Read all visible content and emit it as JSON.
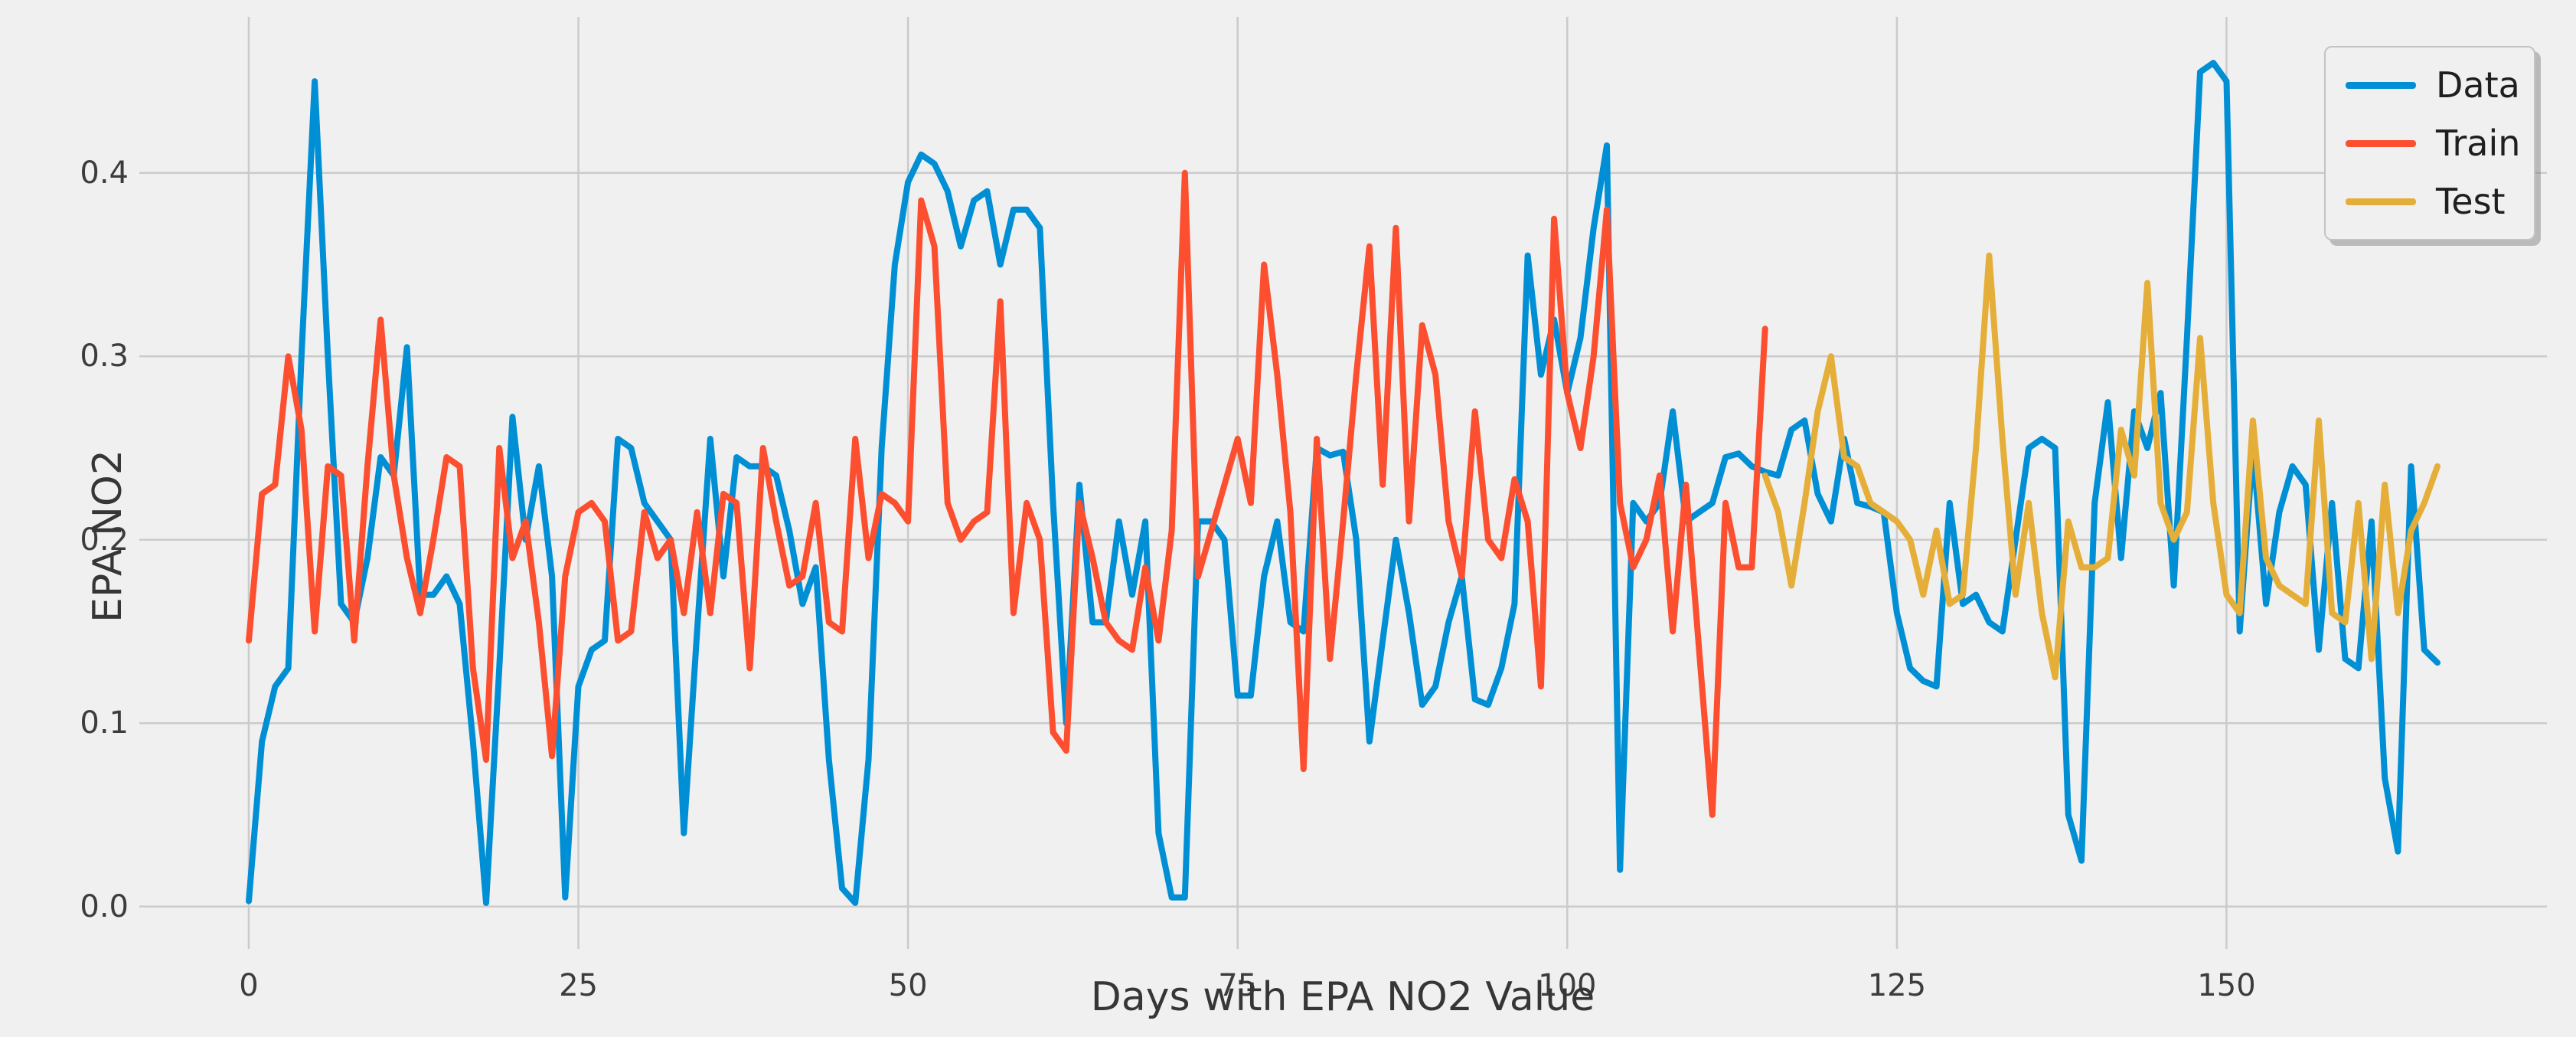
{
  "chart_data": {
    "type": "line",
    "title": "",
    "xlabel": "Days with EPA NO2 Value",
    "ylabel": "EPA NO2",
    "x_ticks": [
      0,
      25,
      50,
      75,
      100,
      125,
      150
    ],
    "y_ticks": [
      0.0,
      0.1,
      0.2,
      0.3,
      0.4
    ],
    "y_tick_labels": [
      "0.0",
      "0.1",
      "0.2",
      "0.3",
      "0.4"
    ],
    "xlim": [
      -8.3,
      174.3
    ],
    "ylim": [
      -0.0231,
      0.4851
    ],
    "grid": true,
    "legend_position": "upper right",
    "background_color": "#f0f0f0",
    "grid_color": "#cbcbcb",
    "series": [
      {
        "name": "Data",
        "color": "#008fd5",
        "x_start": 0,
        "x_step": 1,
        "values": [
          0.003,
          0.09,
          0.12,
          0.13,
          0.3,
          0.45,
          0.3,
          0.165,
          0.155,
          0.19,
          0.245,
          0.235,
          0.305,
          0.17,
          0.17,
          0.18,
          0.165,
          0.09,
          0.002,
          0.13,
          0.267,
          0.2,
          0.24,
          0.18,
          0.005,
          0.12,
          0.14,
          0.145,
          0.255,
          0.25,
          0.22,
          0.21,
          0.2,
          0.04,
          0.15,
          0.255,
          0.18,
          0.245,
          0.24,
          0.24,
          0.235,
          0.205,
          0.165,
          0.185,
          0.08,
          0.01,
          0.002,
          0.08,
          0.25,
          0.35,
          0.395,
          0.41,
          0.405,
          0.39,
          0.36,
          0.385,
          0.39,
          0.35,
          0.38,
          0.38,
          0.37,
          0.22,
          0.1,
          0.23,
          0.155,
          0.155,
          0.21,
          0.17,
          0.21,
          0.04,
          0.005,
          0.005,
          0.21,
          0.21,
          0.2,
          0.115,
          0.115,
          0.18,
          0.21,
          0.155,
          0.15,
          0.25,
          0.246,
          0.248,
          0.2,
          0.09,
          0.145,
          0.2,
          0.16,
          0.11,
          0.12,
          0.155,
          0.18,
          0.113,
          0.11,
          0.13,
          0.165,
          0.355,
          0.29,
          0.32,
          0.28,
          0.31,
          0.37,
          0.415,
          0.02,
          0.22,
          0.21,
          0.22,
          0.27,
          0.21,
          0.215,
          0.22,
          0.245,
          0.247,
          0.24,
          0.237,
          0.235,
          0.26,
          0.265,
          0.225,
          0.21,
          0.255,
          0.22,
          0.218,
          0.215,
          0.16,
          0.13,
          0.123,
          0.12,
          0.22,
          0.165,
          0.17,
          0.155,
          0.15,
          0.2,
          0.25,
          0.255,
          0.25,
          0.05,
          0.025,
          0.22,
          0.275,
          0.19,
          0.27,
          0.25,
          0.28,
          0.175,
          0.31,
          0.455,
          0.46,
          0.45,
          0.15,
          0.25,
          0.165,
          0.215,
          0.24,
          0.23,
          0.14,
          0.22,
          0.135,
          0.13,
          0.21,
          0.07,
          0.03,
          0.24,
          0.14,
          0.133
        ]
      },
      {
        "name": "Train",
        "color": "#fc4f30",
        "x_start": 0,
        "x_step": 1,
        "values": [
          0.145,
          0.225,
          0.23,
          0.3,
          0.26,
          0.15,
          0.24,
          0.235,
          0.145,
          0.24,
          0.32,
          0.235,
          0.19,
          0.16,
          0.2,
          0.245,
          0.24,
          0.13,
          0.08,
          0.25,
          0.19,
          0.21,
          0.155,
          0.082,
          0.18,
          0.215,
          0.22,
          0.21,
          0.145,
          0.15,
          0.215,
          0.19,
          0.2,
          0.16,
          0.215,
          0.16,
          0.225,
          0.22,
          0.13,
          0.25,
          0.21,
          0.175,
          0.18,
          0.22,
          0.155,
          0.15,
          0.255,
          0.19,
          0.225,
          0.22,
          0.21,
          0.385,
          0.36,
          0.22,
          0.2,
          0.21,
          0.215,
          0.33,
          0.16,
          0.22,
          0.2,
          0.095,
          0.085,
          0.22,
          0.19,
          0.155,
          0.145,
          0.14,
          0.185,
          0.145,
          0.205,
          0.4,
          0.18,
          0.205,
          0.23,
          0.255,
          0.22,
          0.35,
          0.29,
          0.215,
          0.075,
          0.255,
          0.135,
          0.21,
          0.29,
          0.36,
          0.23,
          0.37,
          0.21,
          0.317,
          0.29,
          0.21,
          0.18,
          0.27,
          0.2,
          0.19,
          0.233,
          0.21,
          0.12,
          0.375,
          0.28,
          0.25,
          0.3,
          0.38,
          0.22,
          0.185,
          0.2,
          0.235,
          0.15,
          0.23,
          0.14,
          0.05,
          0.22,
          0.185,
          0.185,
          0.315
        ]
      },
      {
        "name": "Test",
        "color": "#e5ae38",
        "x_start": 115,
        "x_step": 1,
        "values": [
          0.235,
          0.215,
          0.175,
          0.22,
          0.27,
          0.3,
          0.245,
          0.24,
          0.22,
          0.215,
          0.21,
          0.2,
          0.17,
          0.205,
          0.165,
          0.17,
          0.25,
          0.355,
          0.255,
          0.17,
          0.22,
          0.16,
          0.125,
          0.21,
          0.185,
          0.185,
          0.19,
          0.26,
          0.235,
          0.34,
          0.22,
          0.2,
          0.215,
          0.31,
          0.22,
          0.17,
          0.16,
          0.265,
          0.19,
          0.175,
          0.17,
          0.165,
          0.265,
          0.16,
          0.155,
          0.22,
          0.135,
          0.23,
          0.16,
          0.205,
          0.22,
          0.24
        ]
      }
    ]
  },
  "legend": {
    "items": [
      {
        "label": "Data"
      },
      {
        "label": "Train"
      },
      {
        "label": "Test"
      }
    ]
  }
}
